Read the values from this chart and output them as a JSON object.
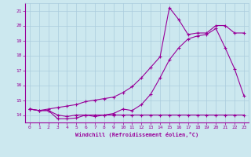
{
  "xlabel": "Windchill (Refroidissement éolien,°C)",
  "bg_color": "#cce8ef",
  "line_color": "#990099",
  "grid_color": "#aaccdd",
  "xlim": [
    -0.5,
    23.5
  ],
  "ylim": [
    13.5,
    21.5
  ],
  "xticks": [
    0,
    1,
    2,
    3,
    4,
    5,
    6,
    7,
    8,
    9,
    10,
    11,
    12,
    13,
    14,
    15,
    16,
    17,
    18,
    19,
    20,
    21,
    22,
    23
  ],
  "yticks": [
    14,
    15,
    16,
    17,
    18,
    19,
    20,
    21
  ],
  "series1_x": [
    0,
    1,
    2,
    3,
    4,
    5,
    6,
    7,
    8,
    9,
    10,
    11,
    12,
    13,
    14,
    15,
    16,
    17,
    18,
    19,
    20,
    21,
    22,
    23
  ],
  "series1_y": [
    14.4,
    14.3,
    14.3,
    13.75,
    13.75,
    13.8,
    14.0,
    13.9,
    14.0,
    14.1,
    14.4,
    14.3,
    14.7,
    15.4,
    16.5,
    17.7,
    18.5,
    19.1,
    19.3,
    19.4,
    19.8,
    18.5,
    17.1,
    15.3
  ],
  "series2_x": [
    0,
    1,
    2,
    3,
    4,
    5,
    6,
    7,
    8,
    9,
    10,
    11,
    12,
    13,
    14,
    15,
    16,
    17,
    18,
    19,
    20,
    21,
    22,
    23
  ],
  "series2_y": [
    14.4,
    14.3,
    14.3,
    14.0,
    13.9,
    14.0,
    14.0,
    14.0,
    14.0,
    14.0,
    14.0,
    14.0,
    14.0,
    14.0,
    14.0,
    14.0,
    14.0,
    14.0,
    14.0,
    14.0,
    14.0,
    14.0,
    14.0,
    14.0
  ],
  "series3_x": [
    0,
    1,
    2,
    3,
    4,
    5,
    6,
    7,
    8,
    9,
    10,
    11,
    12,
    13,
    14,
    15,
    16,
    17,
    18,
    19,
    20,
    21,
    22,
    23
  ],
  "series3_y": [
    14.4,
    14.3,
    14.4,
    14.5,
    14.6,
    14.7,
    14.9,
    15.0,
    15.1,
    15.2,
    15.5,
    15.9,
    16.5,
    17.2,
    17.9,
    21.2,
    20.4,
    19.4,
    19.5,
    19.5,
    20.0,
    20.0,
    19.5,
    19.5
  ]
}
